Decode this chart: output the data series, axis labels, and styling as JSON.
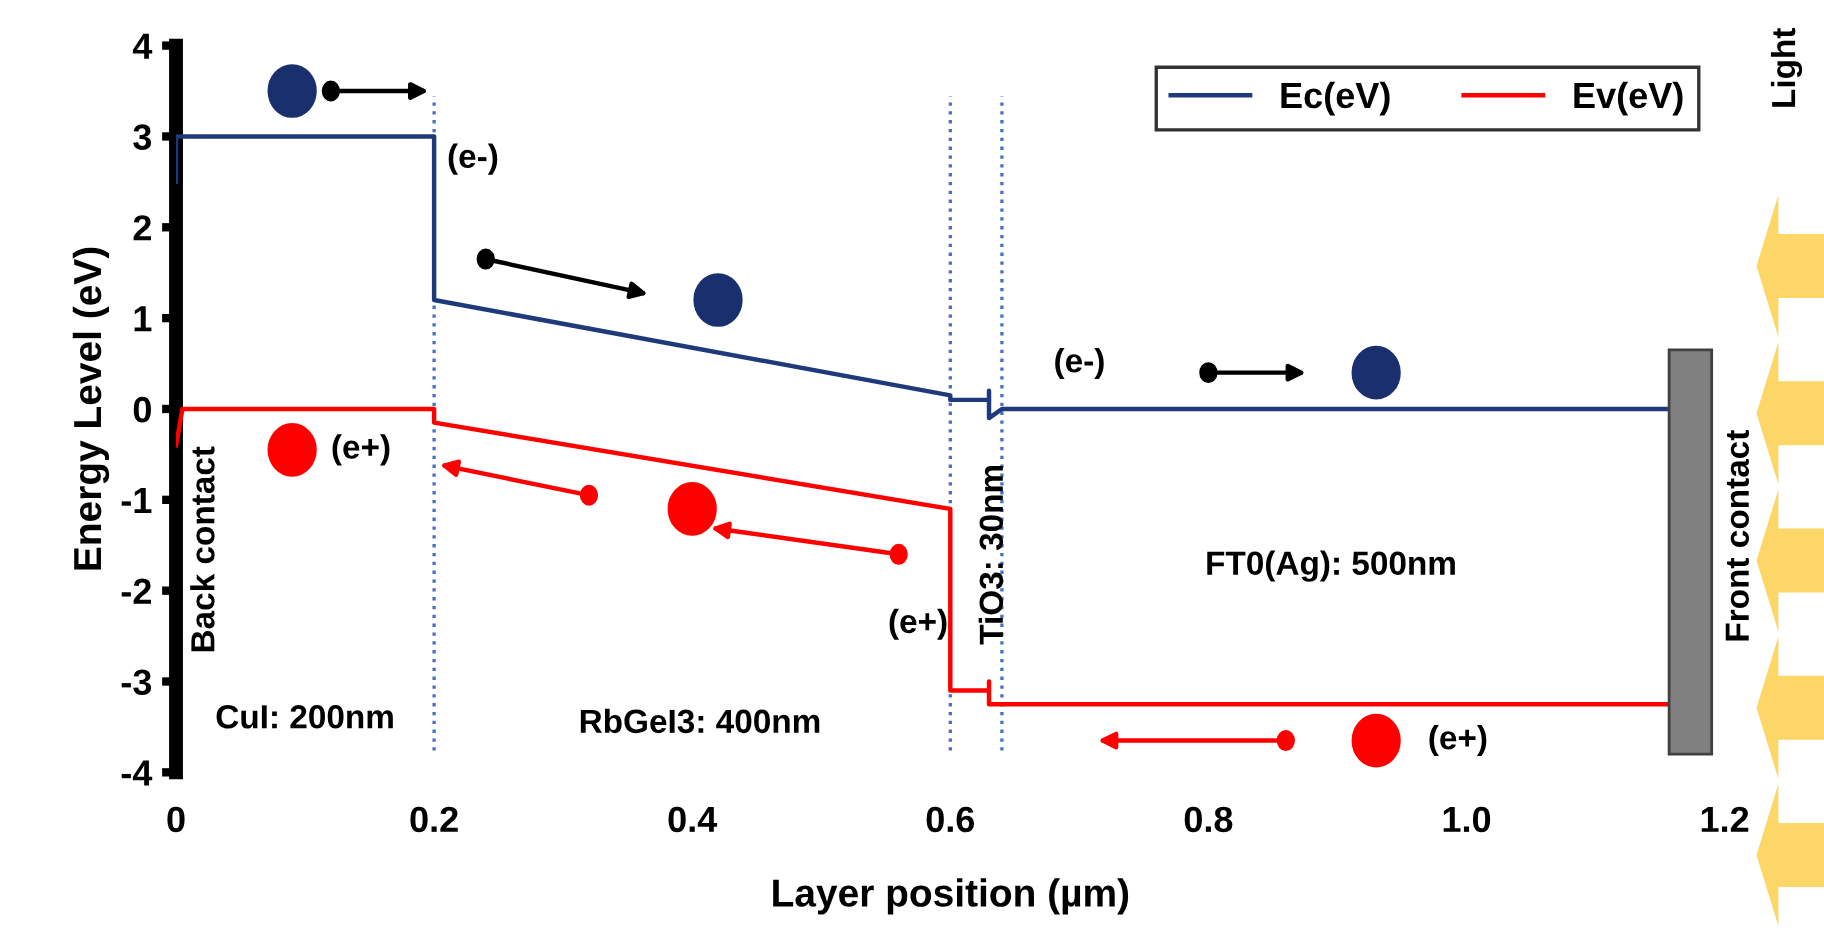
{
  "chart_data": {
    "type": "line",
    "xlabel": "Layer position (µm)",
    "ylabel": "Energy Level (eV)",
    "series": [
      {
        "name": "Ec(eV)",
        "color": "#1f3a7a",
        "x": [
          0,
          0,
          0.2,
          0.2,
          0.6,
          0.6,
          0.63,
          0.63,
          0.63,
          0.64,
          1.155
        ],
        "values": [
          2.5,
          3.0,
          3.0,
          1.2,
          0.15,
          0.1,
          0.1,
          0.2,
          -0.1,
          0.0,
          0.0
        ]
      },
      {
        "name": "Ev(eV)",
        "color": "#ff0000",
        "x": [
          0,
          0.005,
          0.2,
          0.2,
          0.6,
          0.6,
          0.63,
          0.63,
          0.63,
          1.155
        ],
        "values": [
          -0.4,
          0.0,
          0.0,
          -0.15,
          -1.1,
          -3.1,
          -3.1,
          -3.0,
          -3.25,
          -3.25
        ]
      }
    ],
    "xlim": [
      0,
      1.2
    ],
    "ylim": [
      -4,
      4
    ],
    "xticks": [
      0,
      0.2,
      0.4,
      0.6,
      0.8,
      {
        "value": 1.0,
        "label": "1.0"
      },
      1.2
    ],
    "yticks": [
      -4,
      -3,
      -2,
      -1,
      0,
      1,
      2,
      3,
      4
    ],
    "ref_lines": [
      {
        "axis": "x",
        "value": 0.2,
        "color": "#4a72c4",
        "line_style": "dotted"
      },
      {
        "axis": "x",
        "value": 0.6,
        "color": "#4a72c4",
        "line_style": "dotted"
      },
      {
        "axis": "x",
        "value": 0.64,
        "color": "#4a72c4",
        "line_style": "dotted"
      }
    ],
    "annotations": [
      "(e-)",
      "(e+)",
      "(e+)",
      "(e-)",
      "(e+)",
      "CuI: 200nm",
      "RbGeI3: 400nm",
      "TiO3: 30nm",
      "FT0(Ag): 500nm",
      "Back contact",
      "Front contact",
      "Light"
    ],
    "legend": "top right",
    "grid": false,
    "marker": "none",
    "line_style": "solid"
  }
}
